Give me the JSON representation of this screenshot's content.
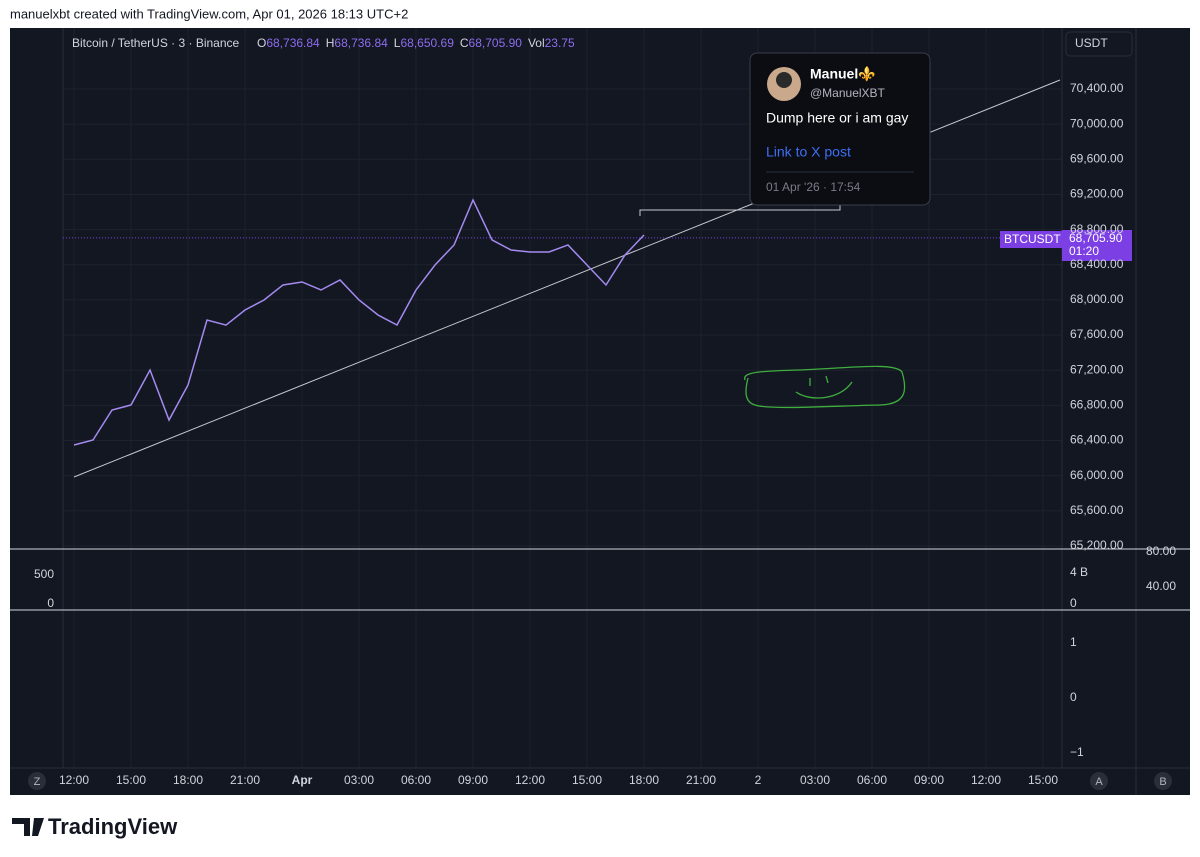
{
  "header": {
    "caption": "manuelxbt created with TradingView.com, Apr 01, 2026 18:13 UTC+2",
    "logo": "TradingView"
  },
  "legend": {
    "symbol": "Bitcoin / TetherUS · 3 · Binance",
    "o_label": "O",
    "o": "68,736.84",
    "h_label": "H",
    "h": "68,736.84",
    "l_label": "L",
    "l": "68,650.69",
    "c_label": "C",
    "c": "68,705.90",
    "vol_label": "Vol",
    "vol": "23.75"
  },
  "currency": "USDT",
  "price_tag": {
    "symbol": "BTCUSDT",
    "countdown": "01:20"
  },
  "post": {
    "name": "Manuel⚜️",
    "handle": "@ManuelXBT",
    "text": "Dump here or i am gay",
    "link": "Link to X post",
    "date": "01 Apr '26 · 17:54"
  },
  "panes": {
    "volume_left": [
      "500",
      "0"
    ],
    "volume_right": [
      "4 B",
      "0"
    ],
    "oscillator_right": [
      "80.00",
      "40.00"
    ],
    "lower_right": [
      "1",
      "0",
      "−1"
    ]
  },
  "corner_buttons": {
    "left": "Z",
    "auto": "A",
    "right": "B"
  },
  "chart_data": {
    "type": "line",
    "last_price": {
      "value": 68705.9,
      "label": "68,705.90"
    },
    "x": [
      12,
      13,
      14,
      15,
      16,
      17,
      18,
      19,
      20,
      21,
      22,
      23,
      24,
      25,
      26,
      27,
      28,
      29,
      30,
      31,
      32,
      33,
      34,
      35,
      36,
      37,
      38,
      39,
      40,
      41,
      42
    ],
    "series": [
      {
        "color": "#a48bf0",
        "values": [
          66349,
          66406,
          66747,
          66804,
          67202,
          66633,
          67032,
          67771,
          67714,
          67885,
          67999,
          68170,
          68204,
          68113,
          68227,
          67999,
          67828,
          67714,
          68113,
          68397,
          68625,
          69137,
          68682,
          68568,
          68545,
          68545,
          68625,
          68397,
          68170,
          68511,
          68739
        ]
      }
    ],
    "xlim": [
      11.42,
      64
    ],
    "xticks": [
      {
        "value": 12,
        "label": "12:00"
      },
      {
        "value": 15,
        "label": "15:00"
      },
      {
        "value": 18,
        "label": "18:00"
      },
      {
        "value": 21,
        "label": "21:00"
      },
      {
        "value": 24,
        "label": "Apr"
      },
      {
        "value": 27,
        "label": "03:00"
      },
      {
        "value": 30,
        "label": "06:00"
      },
      {
        "value": 33,
        "label": "09:00"
      },
      {
        "value": 36,
        "label": "12:00"
      },
      {
        "value": 39,
        "label": "15:00"
      },
      {
        "value": 42,
        "label": "18:00"
      },
      {
        "value": 45,
        "label": "21:00"
      },
      {
        "value": 48,
        "label": "2"
      },
      {
        "value": 51,
        "label": "03:00"
      },
      {
        "value": 54,
        "label": "06:00"
      },
      {
        "value": 57,
        "label": "09:00"
      },
      {
        "value": 60,
        "label": "12:00"
      },
      {
        "value": 63,
        "label": "15:00"
      }
    ],
    "ylim": [
      65177,
      71094
    ],
    "yticks": [
      {
        "value": 65200,
        "label": "65,200.00"
      },
      {
        "value": 65600,
        "label": "65,600.00"
      },
      {
        "value": 66000,
        "label": "66,000.00"
      },
      {
        "value": 66400,
        "label": "66,400.00"
      },
      {
        "value": 66800,
        "label": "66,800.00"
      },
      {
        "value": 67200,
        "label": "67,200.00"
      },
      {
        "value": 67600,
        "label": "67,600.00"
      },
      {
        "value": 68000,
        "label": "68,000.00"
      },
      {
        "value": 68400,
        "label": "68,400.00"
      },
      {
        "value": 68800,
        "label": "68,800.00"
      },
      {
        "value": 69200,
        "label": "69,200.00"
      },
      {
        "value": 69600,
        "label": "69,600.00"
      },
      {
        "value": 70000,
        "label": "70,000.00"
      },
      {
        "value": 70400,
        "label": "70,400.00"
      }
    ],
    "grid": true
  }
}
